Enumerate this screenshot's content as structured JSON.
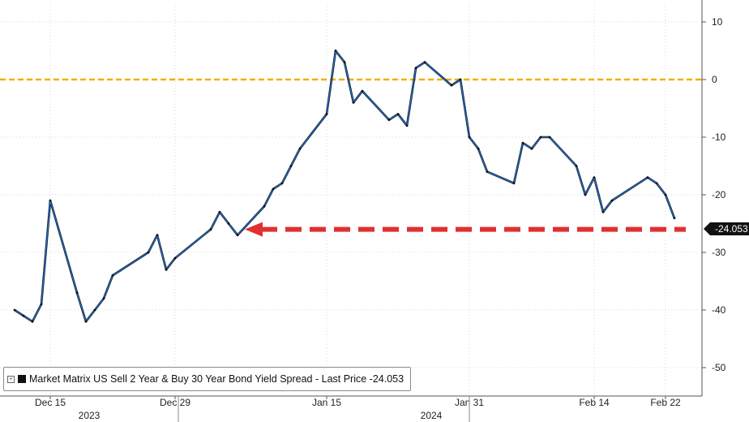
{
  "chart_data": {
    "type": "line",
    "title": "",
    "legend": "Market Matrix US Sell 2 Year & Buy 30 Year Bond Yield Spread - Last Price -24.053",
    "last_value_label": "-24.053",
    "last_value": -24.053,
    "y_ticks": [
      "10",
      "0",
      "-10",
      "-20",
      "-30",
      "-40",
      "-50"
    ],
    "ylim": [
      -50,
      10
    ],
    "y_axis_position": "right",
    "grid": true,
    "x_ticks": [
      "Dec 15",
      "Dec 29",
      "Jan 15",
      "Jan 31",
      "Feb 14",
      "Feb 22"
    ],
    "x_years": [
      "2023",
      "2024"
    ],
    "reference_line": {
      "value": 0,
      "color": "#f0b000",
      "style": "dashed"
    },
    "support_arrow": {
      "value": -26,
      "color": "#e03030",
      "direction": "left"
    },
    "series": [
      {
        "color": "#1f6fd0",
        "x": [
          "2023-12-11",
          "2023-12-12",
          "2023-12-13",
          "2023-12-14",
          "2023-12-15",
          "2023-12-18",
          "2023-12-19",
          "2023-12-20",
          "2023-12-21",
          "2023-12-22",
          "2023-12-26",
          "2023-12-27",
          "2023-12-28",
          "2023-12-29",
          "2024-01-02",
          "2024-01-03",
          "2024-01-04",
          "2024-01-05",
          "2024-01-08",
          "2024-01-09",
          "2024-01-10",
          "2024-01-11",
          "2024-01-12",
          "2024-01-15",
          "2024-01-16",
          "2024-01-17",
          "2024-01-18",
          "2024-01-19",
          "2024-01-22",
          "2024-01-23",
          "2024-01-24",
          "2024-01-25",
          "2024-01-26",
          "2024-01-29",
          "2024-01-30",
          "2024-01-31",
          "2024-02-01",
          "2024-02-02",
          "2024-02-05",
          "2024-02-06",
          "2024-02-07",
          "2024-02-08",
          "2024-02-09",
          "2024-02-12",
          "2024-02-13",
          "2024-02-14",
          "2024-02-15",
          "2024-02-16",
          "2024-02-20",
          "2024-02-21",
          "2024-02-22",
          "2024-02-23"
        ],
        "values": [
          -40,
          -41,
          -42,
          -39,
          -21,
          -37,
          -42,
          -40,
          -38,
          -34,
          -30,
          -27,
          -33,
          -31,
          -26,
          -23,
          -25,
          -27,
          -22,
          -19,
          -18,
          -15,
          -12,
          -6,
          5,
          3,
          -4,
          -2,
          -7,
          -6,
          -8,
          2,
          3,
          -1,
          0,
          -10,
          -12,
          -16,
          -18,
          -11,
          -12,
          -10,
          -10,
          -15,
          -20,
          -17,
          -23,
          -21,
          -17,
          -18,
          -20,
          -24.053
        ]
      }
    ]
  }
}
